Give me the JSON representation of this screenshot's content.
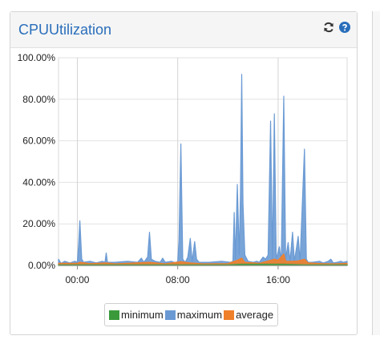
{
  "panel": {
    "title": "CPUUtilization"
  },
  "icons": {
    "refresh": "refresh-icon",
    "help": "help-icon"
  },
  "colors": {
    "minimum": "#3a9a3a",
    "maximum": "#6a9ad4",
    "average": "#f07f2a",
    "title": "#2a6ebb"
  },
  "chart_data": {
    "type": "area",
    "xlabel": "",
    "ylabel": "",
    "ylim": [
      0,
      100
    ],
    "xlim": [
      -1.5,
      21.5
    ],
    "y_ticks": [
      {
        "value": 0,
        "label": "0.00%"
      },
      {
        "value": 20,
        "label": "20.00%"
      },
      {
        "value": 40,
        "label": "40.00%"
      },
      {
        "value": 60,
        "label": "60.00%"
      },
      {
        "value": 80,
        "label": "80.00%"
      },
      {
        "value": 100,
        "label": "100.00%"
      }
    ],
    "x_ticks": [
      {
        "value": 0,
        "label": "00:00"
      },
      {
        "value": 8,
        "label": "08:00"
      },
      {
        "value": 16,
        "label": "16:00"
      }
    ],
    "grid": true,
    "legend_position": "bottom",
    "series": [
      {
        "name": "maximum",
        "color": "#6a9ad4",
        "points": [
          [
            -1.5,
            3
          ],
          [
            -1.3,
            1.0
          ],
          [
            -1.0,
            2
          ],
          [
            -0.6,
            1.2
          ],
          [
            -0.2,
            2
          ],
          [
            0,
            1.5
          ],
          [
            0.1,
            10
          ],
          [
            0.2,
            21.5
          ],
          [
            0.35,
            3
          ],
          [
            0.5,
            1.5
          ],
          [
            1.0,
            2
          ],
          [
            1.5,
            1.2
          ],
          [
            2.0,
            2
          ],
          [
            2.2,
            1.5
          ],
          [
            2.3,
            6
          ],
          [
            2.4,
            1.5
          ],
          [
            3.0,
            1.5
          ],
          [
            4.0,
            2
          ],
          [
            4.8,
            1.5
          ],
          [
            5.1,
            3.5
          ],
          [
            5.3,
            1.5
          ],
          [
            5.6,
            4
          ],
          [
            5.75,
            16
          ],
          [
            5.9,
            3
          ],
          [
            6.2,
            2
          ],
          [
            6.6,
            1.5
          ],
          [
            6.8,
            3.5
          ],
          [
            7.0,
            1.5
          ],
          [
            7.5,
            2
          ],
          [
            7.7,
            1.5
          ],
          [
            7.9,
            1.5
          ],
          [
            8.0,
            2.0
          ],
          [
            8.1,
            12
          ],
          [
            8.25,
            58.5
          ],
          [
            8.4,
            3
          ],
          [
            8.6,
            1.5
          ],
          [
            8.8,
            4
          ],
          [
            9.0,
            13
          ],
          [
            9.15,
            2
          ],
          [
            9.35,
            11.5
          ],
          [
            9.5,
            3
          ],
          [
            9.7,
            1.5
          ],
          [
            10.5,
            1.5
          ],
          [
            11.5,
            2
          ],
          [
            12.2,
            1.5
          ],
          [
            12.4,
            2
          ],
          [
            12.5,
            25.5
          ],
          [
            12.6,
            3
          ],
          [
            12.75,
            39
          ],
          [
            12.9,
            5
          ],
          [
            13.0,
            35
          ],
          [
            13.1,
            92
          ],
          [
            13.2,
            30
          ],
          [
            13.35,
            5
          ],
          [
            13.6,
            2
          ],
          [
            14.0,
            1.5
          ],
          [
            14.3,
            2
          ],
          [
            14.5,
            1.5
          ],
          [
            14.8,
            4
          ],
          [
            15.0,
            3
          ],
          [
            15.2,
            5
          ],
          [
            15.4,
            69.5
          ],
          [
            15.55,
            3
          ],
          [
            15.7,
            73
          ],
          [
            15.85,
            3
          ],
          [
            16.1,
            9
          ],
          [
            16.25,
            2
          ],
          [
            16.45,
            81.5
          ],
          [
            16.6,
            3
          ],
          [
            16.8,
            11
          ],
          [
            16.95,
            2
          ],
          [
            17.15,
            16
          ],
          [
            17.3,
            2
          ],
          [
            17.6,
            14
          ],
          [
            17.75,
            2
          ],
          [
            18.1,
            56
          ],
          [
            18.25,
            3
          ],
          [
            18.4,
            1.5
          ],
          [
            18.7,
            1.5
          ],
          [
            19.3,
            2
          ],
          [
            19.6,
            1.2
          ],
          [
            20.0,
            2
          ],
          [
            20.2,
            3
          ],
          [
            20.4,
            1.2
          ],
          [
            20.7,
            1.5
          ],
          [
            21.0,
            2
          ],
          [
            21.2,
            1.5
          ],
          [
            21.4,
            1.8
          ],
          [
            21.5,
            2
          ]
        ]
      },
      {
        "name": "average",
        "color": "#f07f2a",
        "points": [
          [
            -1.5,
            1
          ],
          [
            0,
            1.0
          ],
          [
            0.2,
            1.5
          ],
          [
            1.0,
            0.9
          ],
          [
            2.3,
            1.2
          ],
          [
            3.0,
            0.8
          ],
          [
            5.75,
            1.5
          ],
          [
            7.0,
            0.8
          ],
          [
            8.25,
            1.8
          ],
          [
            9.0,
            1.2
          ],
          [
            10.0,
            0.8
          ],
          [
            12.0,
            0.9
          ],
          [
            12.75,
            2.5
          ],
          [
            13.1,
            3.5
          ],
          [
            13.35,
            1.5
          ],
          [
            14.5,
            1.0
          ],
          [
            15.4,
            2.5
          ],
          [
            15.7,
            3.0
          ],
          [
            16.0,
            2.5
          ],
          [
            16.45,
            5.5
          ],
          [
            16.6,
            2
          ],
          [
            17.15,
            2
          ],
          [
            17.6,
            2.2
          ],
          [
            18.1,
            3.0
          ],
          [
            18.4,
            1.2
          ],
          [
            19.5,
            0.9
          ],
          [
            20.5,
            0.8
          ],
          [
            21.5,
            1
          ]
        ]
      },
      {
        "name": "minimum",
        "color": "#3a9a3a",
        "points": [
          [
            -1.5,
            0.3
          ],
          [
            5,
            0.3
          ],
          [
            12,
            0.3
          ],
          [
            13.1,
            0.6
          ],
          [
            16.45,
            0.6
          ],
          [
            18,
            0.3
          ],
          [
            21.5,
            0.3
          ]
        ]
      }
    ]
  },
  "legend": {
    "items": [
      {
        "label": "minimum",
        "color": "#3a9a3a"
      },
      {
        "label": "maximum",
        "color": "#6a9ad4"
      },
      {
        "label": "average",
        "color": "#f07f2a"
      }
    ]
  }
}
